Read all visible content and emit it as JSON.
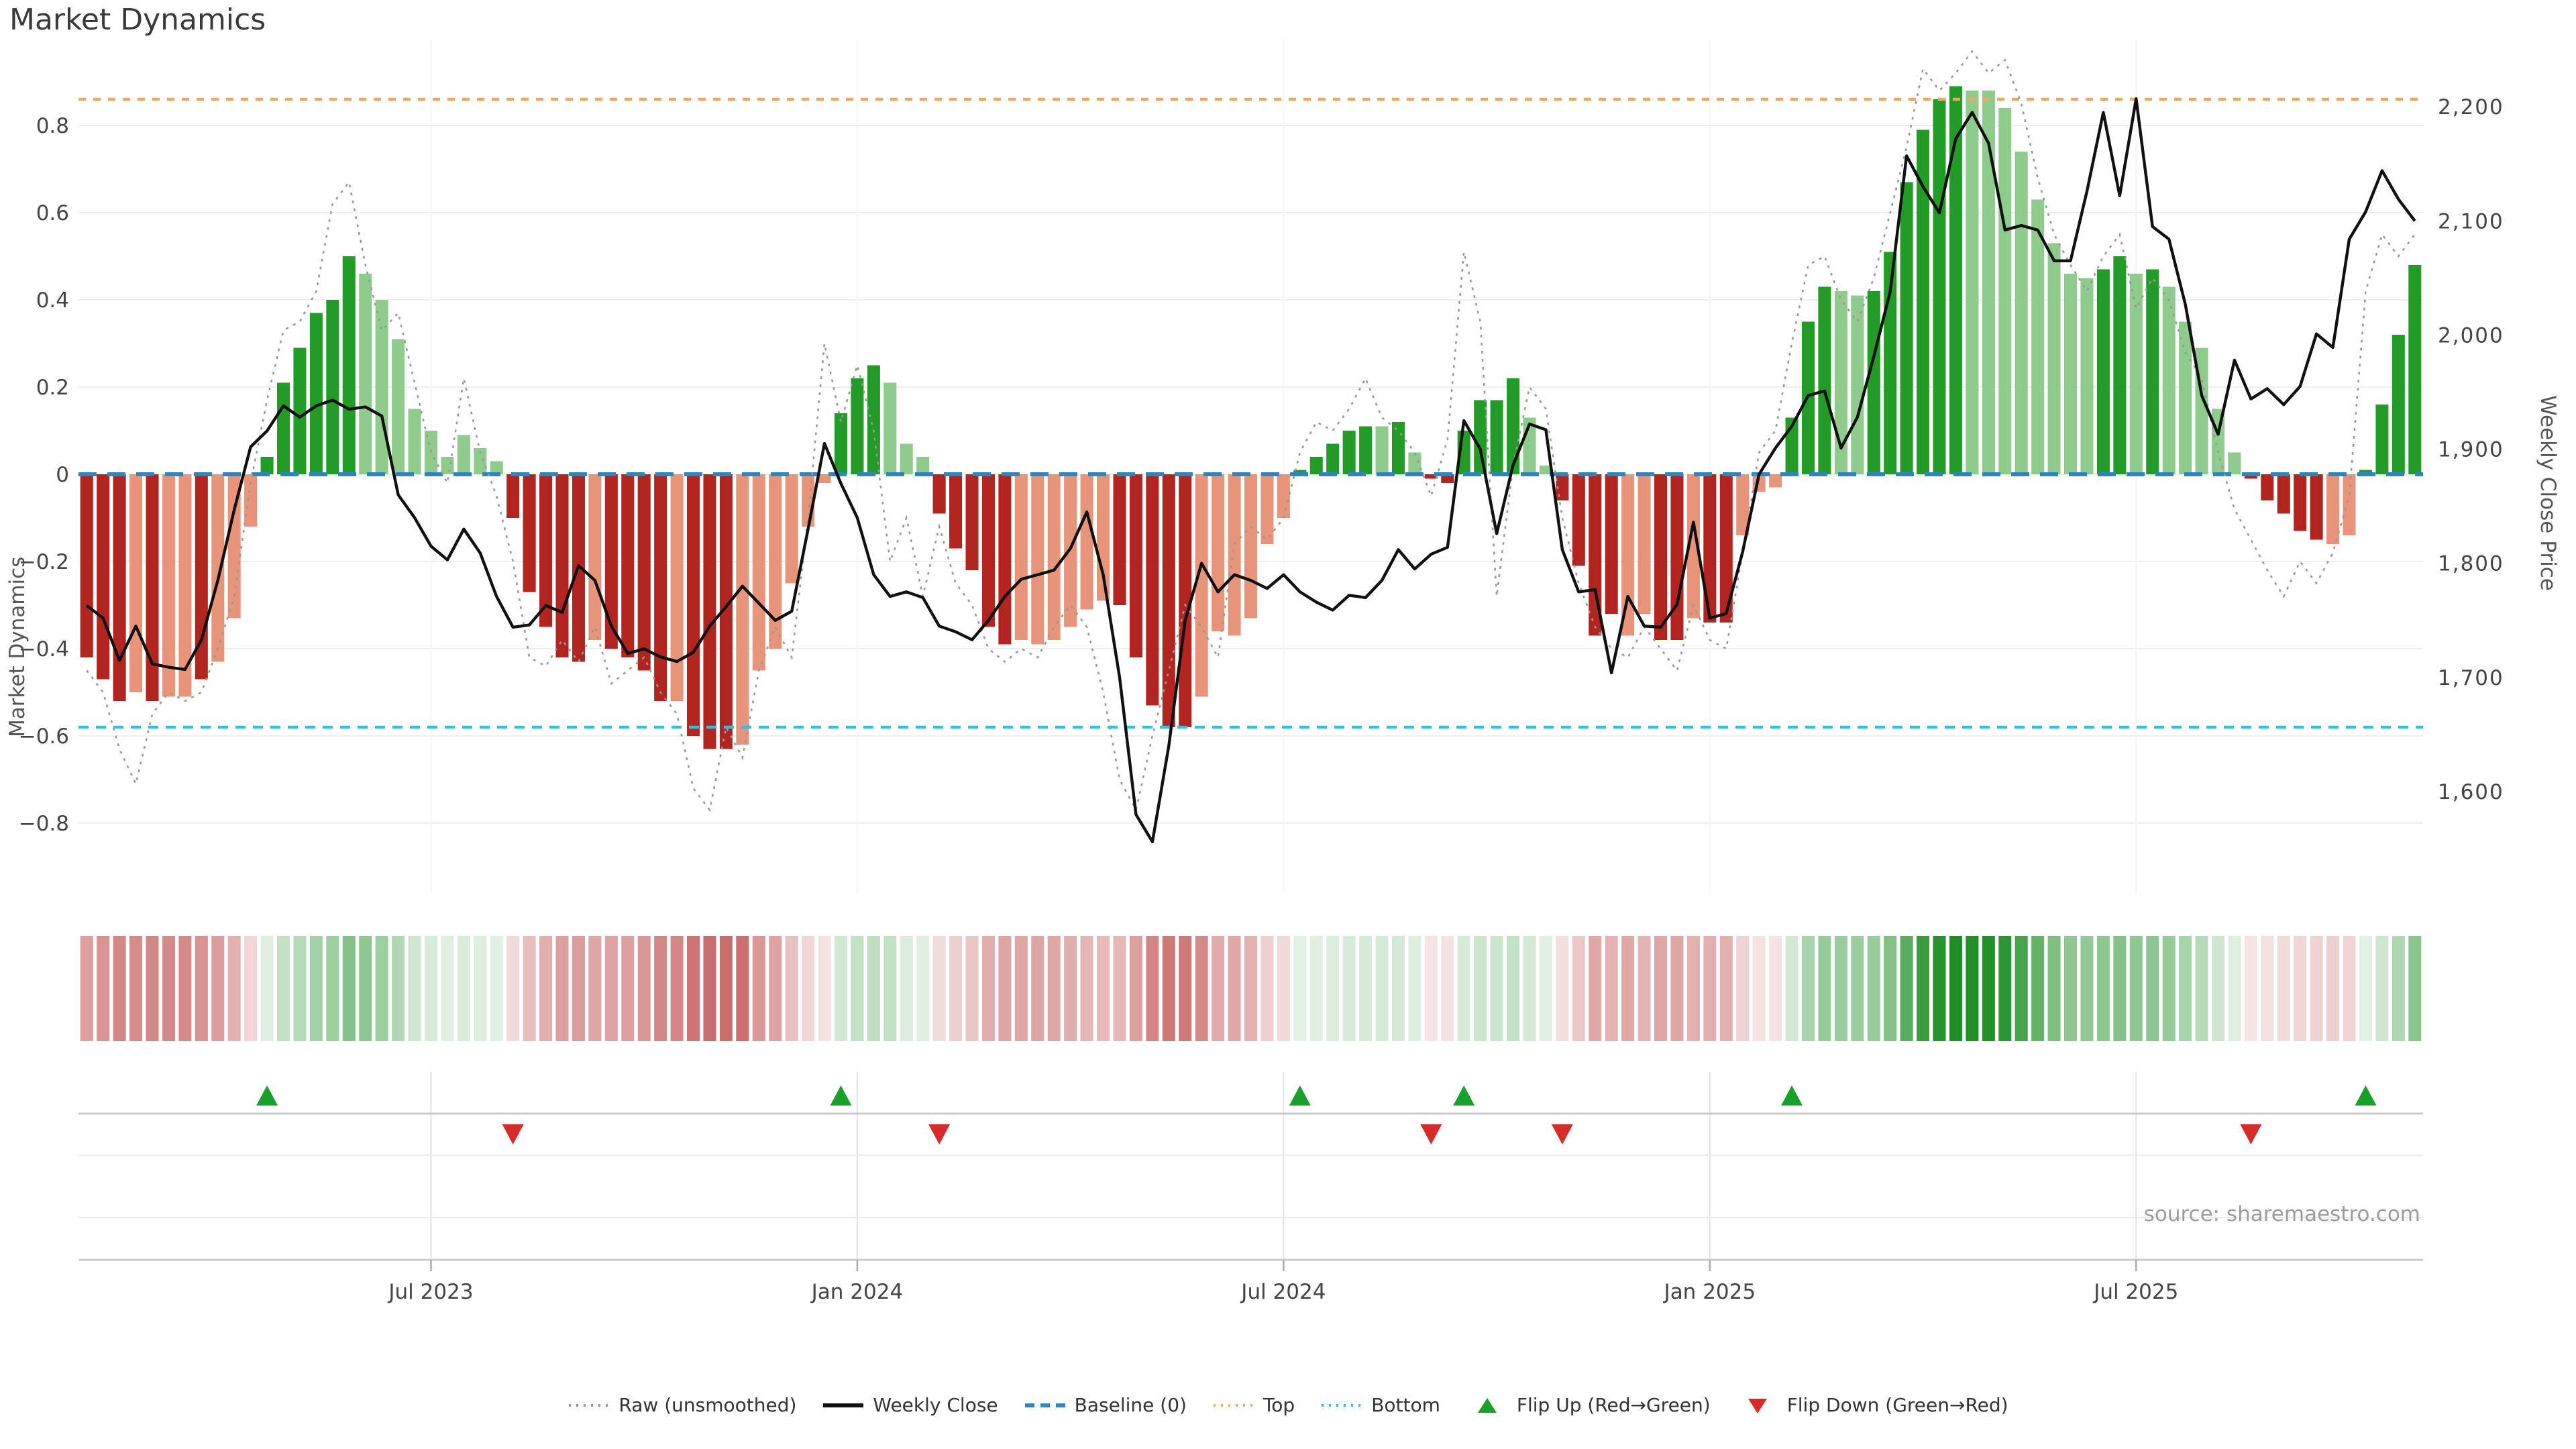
{
  "title": "Market Dynamics",
  "source": "source: sharemaestro.com",
  "legend": {
    "items": [
      {
        "label": "Raw (unsmoothed)",
        "type": "dotted",
        "color": "#999999"
      },
      {
        "label": "Weekly Close",
        "type": "solid",
        "color": "#111111"
      },
      {
        "label": "Baseline (0)",
        "type": "dashed",
        "color": "#2e86c1"
      },
      {
        "label": "Top",
        "type": "dotted",
        "color": "#f5a55f"
      },
      {
        "label": "Bottom",
        "type": "dotted",
        "color": "#29c2ec"
      },
      {
        "label": "Flip Up (Red→Green)",
        "type": "triangle-up",
        "color": "#18a02b"
      },
      {
        "label": "Flip Down (Green→Red)",
        "type": "triangle-down",
        "color": "#d62b28"
      }
    ]
  },
  "chart_data": {
    "type": "bar",
    "subtype": "combo-oscillator-price",
    "title": "Market Dynamics",
    "weeks": 143,
    "x_axis": {
      "tick_labels": [
        "Jul 2023",
        "Jan 2024",
        "Jul 2024",
        "Jan 2025",
        "Jul 2025"
      ],
      "tick_weeks": [
        21,
        47,
        73,
        99,
        125
      ]
    },
    "left_axis": {
      "label": "Market Dynamics",
      "tick_values": [
        0.8,
        0.6,
        0.4,
        0.2,
        0,
        -0.2,
        -0.4,
        -0.6,
        -0.8
      ],
      "tick_labels": [
        "0.8",
        "0.6",
        "0.4",
        "0.2",
        "0",
        "−0.2",
        "−0.4",
        "−0.6",
        "−0.8"
      ],
      "range": [
        -0.96,
        1.0
      ]
    },
    "right_axis": {
      "label": "Weekly Close Price",
      "tick_values": [
        2200,
        2100,
        2000,
        1900,
        1800,
        1700,
        1600
      ],
      "tick_labels": [
        "2,200",
        "2,100",
        "2,000",
        "1,900",
        "1,800",
        "1,700",
        "1,600"
      ],
      "price_at_baseline": 1878,
      "price_per_left_unit": 382
    },
    "reference_lines": {
      "baseline": 0,
      "top": 0.86,
      "bottom": -0.58
    },
    "flip_up_weeks": [
      11,
      46,
      74,
      84,
      104,
      139
    ],
    "flip_down_weeks": [
      26,
      52,
      82,
      90,
      132
    ],
    "bar_tone": "dddldlldlllddddddllllllllldddddlddddldddlllllldddllldddddlllllldddddlllllldddddldlddddddllddddllddlddllldddllddddddllllllllddldllllldddddlldddd",
    "series": [
      {
        "name": "Market Dynamics (smoothed bars)",
        "type": "bar",
        "axis": "left",
        "values": [
          -0.42,
          -0.47,
          -0.52,
          -0.5,
          -0.52,
          -0.51,
          -0.51,
          -0.47,
          -0.43,
          -0.33,
          -0.12,
          0.04,
          0.21,
          0.29,
          0.37,
          0.4,
          0.5,
          0.46,
          0.4,
          0.31,
          0.15,
          0.1,
          0.04,
          0.09,
          0.06,
          0.03,
          -0.1,
          -0.27,
          -0.35,
          -0.42,
          -0.43,
          -0.38,
          -0.4,
          -0.42,
          -0.45,
          -0.52,
          -0.52,
          -0.6,
          -0.63,
          -0.63,
          -0.62,
          -0.45,
          -0.4,
          -0.25,
          -0.12,
          -0.02,
          0.14,
          0.22,
          0.25,
          0.21,
          0.07,
          0.04,
          -0.09,
          -0.17,
          -0.22,
          -0.35,
          -0.39,
          -0.38,
          -0.39,
          -0.38,
          -0.35,
          -0.31,
          -0.29,
          -0.3,
          -0.42,
          -0.53,
          -0.58,
          -0.58,
          -0.51,
          -0.36,
          -0.37,
          -0.33,
          -0.16,
          -0.1,
          0.01,
          0.04,
          0.07,
          0.1,
          0.11,
          0.11,
          0.12,
          0.05,
          -0.01,
          -0.02,
          0.1,
          0.17,
          0.17,
          0.22,
          0.13,
          0.02,
          -0.06,
          -0.21,
          -0.37,
          -0.32,
          -0.37,
          -0.32,
          -0.38,
          -0.38,
          -0.33,
          -0.34,
          -0.34,
          -0.14,
          -0.04,
          -0.03,
          0.13,
          0.35,
          0.43,
          0.42,
          0.41,
          0.42,
          0.51,
          0.67,
          0.79,
          0.86,
          0.89,
          0.88,
          0.88,
          0.84,
          0.74,
          0.63,
          0.53,
          0.46,
          0.45,
          0.47,
          0.5,
          0.46,
          0.47,
          0.43,
          0.35,
          0.29,
          0.15,
          0.05,
          -0.01,
          -0.06,
          -0.09,
          -0.13,
          -0.15,
          -0.16,
          -0.14,
          0.01,
          0.16,
          0.32,
          0.48
        ]
      },
      {
        "name": "Raw (unsmoothed)",
        "type": "line",
        "style": "dotted",
        "axis": "left",
        "values": [
          -0.45,
          -0.5,
          -0.63,
          -0.71,
          -0.55,
          -0.5,
          -0.52,
          -0.5,
          -0.4,
          -0.28,
          -0.02,
          0.17,
          0.33,
          0.35,
          0.42,
          0.62,
          0.67,
          0.48,
          0.33,
          0.37,
          0.21,
          0.05,
          -0.02,
          0.22,
          0.05,
          -0.05,
          -0.2,
          -0.42,
          -0.44,
          -0.38,
          -0.43,
          -0.35,
          -0.48,
          -0.45,
          -0.42,
          -0.5,
          -0.55,
          -0.72,
          -0.77,
          -0.58,
          -0.65,
          -0.45,
          -0.35,
          -0.42,
          -0.1,
          0.3,
          0.12,
          0.25,
          0.1,
          -0.2,
          -0.1,
          -0.28,
          -0.12,
          -0.25,
          -0.3,
          -0.4,
          -0.43,
          -0.4,
          -0.42,
          -0.35,
          -0.3,
          -0.35,
          -0.5,
          -0.7,
          -0.77,
          -0.6,
          -0.45,
          -0.3,
          -0.35,
          -0.42,
          -0.16,
          -0.12,
          -0.15,
          -0.1,
          0.05,
          0.12,
          0.1,
          0.15,
          0.22,
          0.13,
          0.1,
          0.05,
          -0.05,
          0.08,
          0.51,
          0.35,
          -0.28,
          0.02,
          0.2,
          0.15,
          -0.1,
          -0.25,
          -0.35,
          -0.4,
          -0.42,
          -0.35,
          -0.4,
          -0.45,
          -0.3,
          -0.38,
          -0.4,
          -0.18,
          0.05,
          0.1,
          0.3,
          0.48,
          0.5,
          0.4,
          0.35,
          0.45,
          0.6,
          0.75,
          0.93,
          0.88,
          0.92,
          0.97,
          0.92,
          0.95,
          0.85,
          0.68,
          0.55,
          0.48,
          0.42,
          0.5,
          0.55,
          0.38,
          0.45,
          0.4,
          0.28,
          0.22,
          0.05,
          -0.08,
          -0.15,
          -0.22,
          -0.28,
          -0.2,
          -0.25,
          -0.18,
          -0.05,
          0.42,
          0.55,
          0.5,
          0.55
        ]
      },
      {
        "name": "Weekly Close",
        "type": "line",
        "style": "solid",
        "axis": "right",
        "values": [
          1763,
          1752,
          1715,
          1745,
          1712,
          1709,
          1707,
          1733,
          1785,
          1847,
          1902,
          1916,
          1938,
          1928,
          1938,
          1943,
          1935,
          1937,
          1929,
          1860,
          1840,
          1815,
          1803,
          1830,
          1809,
          1771,
          1744,
          1746,
          1763,
          1757,
          1798,
          1785,
          1745,
          1721,
          1725,
          1718,
          1714,
          1722,
          1745,
          1762,
          1780,
          1765,
          1750,
          1758,
          1830,
          1905,
          1870,
          1840,
          1790,
          1771,
          1775,
          1770,
          1745,
          1740,
          1733,
          1750,
          1771,
          1786,
          1790,
          1794,
          1813,
          1845,
          1790,
          1700,
          1580,
          1556,
          1640,
          1750,
          1800,
          1775,
          1790,
          1785,
          1778,
          1790,
          1775,
          1766,
          1759,
          1772,
          1770,
          1785,
          1812,
          1795,
          1808,
          1814,
          1925,
          1900,
          1826,
          1886,
          1922,
          1917,
          1812,
          1775,
          1777,
          1704,
          1771,
          1745,
          1744,
          1764,
          1836,
          1752,
          1756,
          1810,
          1878,
          1901,
          1920,
          1947,
          1951,
          1901,
          1928,
          1981,
          2038,
          2157,
          2130,
          2107,
          2172,
          2195,
          2168,
          2092,
          2096,
          2092,
          2065,
          2065,
          2126,
          2195,
          2122,
          2207,
          2095,
          2084,
          2027,
          1947,
          1913,
          1978,
          1944,
          1953,
          1939,
          1955,
          2001,
          1989,
          2084,
          2108,
          2144,
          2119,
          2100
        ]
      }
    ],
    "colors": {
      "bar_red_dark": "#b2241f",
      "bar_red_light": "#e8947b",
      "bar_green_dark": "#239b27",
      "bar_green_light": "#8ecb8c",
      "weekly_close": "#111111",
      "raw": "#999999",
      "baseline": "#2e86c1",
      "top": "#f5a55f",
      "bottom": "#29c2ec",
      "flip_up": "#18a02b",
      "flip_down": "#d62b28"
    },
    "heatmap": {
      "description": "weekly strip colored by bar value (red negative, green positive, saturation by magnitude)"
    },
    "layout": {
      "grid": true,
      "legend_position": "bottom-center"
    }
  }
}
